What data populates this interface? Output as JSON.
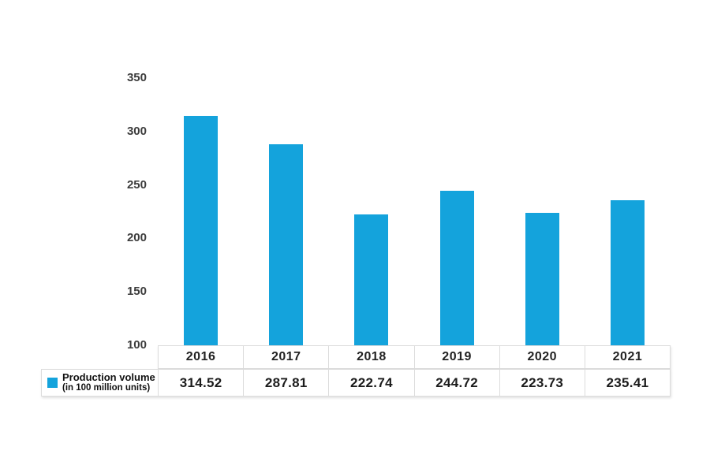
{
  "chart_data": {
    "type": "bar",
    "title": "",
    "xlabel": "",
    "ylabel": "",
    "categories": [
      "2016",
      "2017",
      "2018",
      "2019",
      "2020",
      "2021"
    ],
    "values": [
      314.52,
      287.81,
      222.74,
      244.72,
      223.73,
      235.41
    ],
    "display_values": [
      "314.52",
      "287.81",
      "222.74",
      "244.72",
      "223.73",
      "235.41"
    ],
    "series_name": "Production volume (in 100 million units)",
    "ylim": [
      100,
      350
    ],
    "yticks": [
      100,
      150,
      200,
      250,
      300,
      350
    ],
    "bar_color": "#14a3dc",
    "grid": false,
    "legend_position": "bottom-left"
  },
  "legend": {
    "line1": "Production volume",
    "line2": "(in 100 million units)",
    "marker_color": "#14a3dc"
  }
}
